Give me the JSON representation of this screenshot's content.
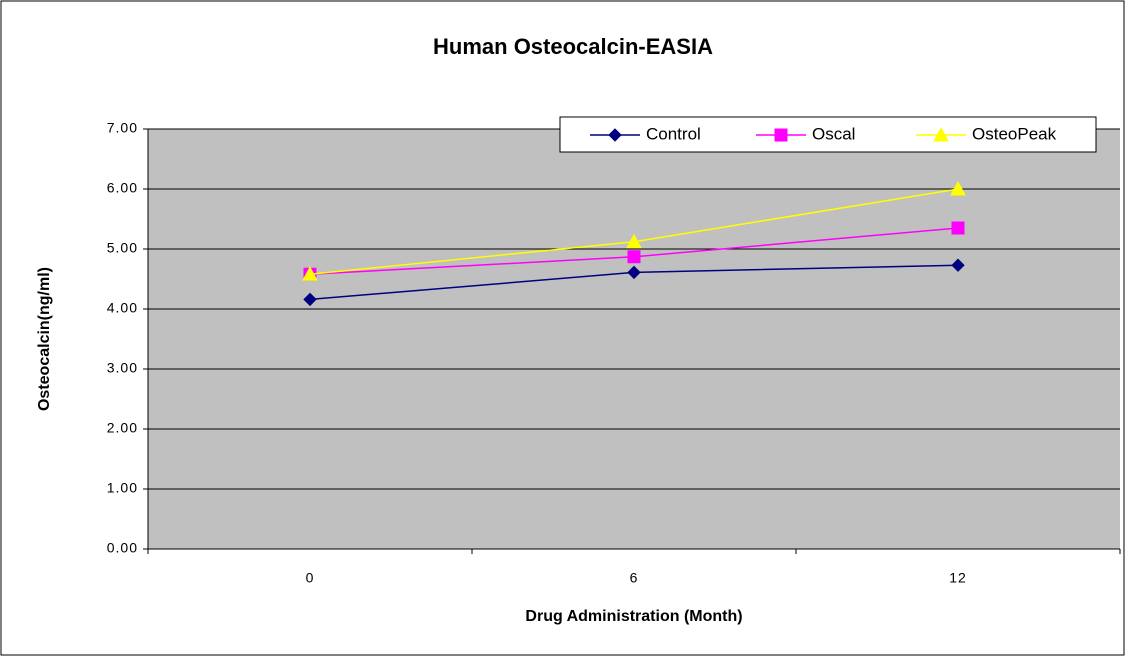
{
  "chart_data": {
    "type": "line",
    "title": "Human Osteocalcin-EASIA",
    "x_label": "Drug Administration (Month)",
    "y_label": "Osteocalcin(ng/ml)",
    "categories": [
      "0",
      "6",
      "12"
    ],
    "series": [
      {
        "name": "Control",
        "color": "#000080",
        "marker": "diamond",
        "values": [
          4.16,
          4.61,
          4.73
        ]
      },
      {
        "name": "Oscal",
        "color": "#ff00ff",
        "marker": "square",
        "values": [
          4.58,
          4.87,
          5.35
        ]
      },
      {
        "name": "OsteoPeak",
        "color": "#ffff00",
        "marker": "triangle",
        "values": [
          4.58,
          5.12,
          6.0
        ]
      }
    ],
    "ylim": [
      0,
      7
    ],
    "yticks": [
      {
        "value": 0,
        "label": "0.00"
      },
      {
        "value": 1,
        "label": "1.00"
      },
      {
        "value": 2,
        "label": "2.00"
      },
      {
        "value": 3,
        "label": "3.00"
      },
      {
        "value": 4,
        "label": "4.00"
      },
      {
        "value": 5,
        "label": "5.00"
      },
      {
        "value": 6,
        "label": "6.00"
      },
      {
        "value": 7,
        "label": "7.00"
      }
    ],
    "grid": true,
    "legend": "top-right",
    "plot_background": "#c0c0c0"
  }
}
